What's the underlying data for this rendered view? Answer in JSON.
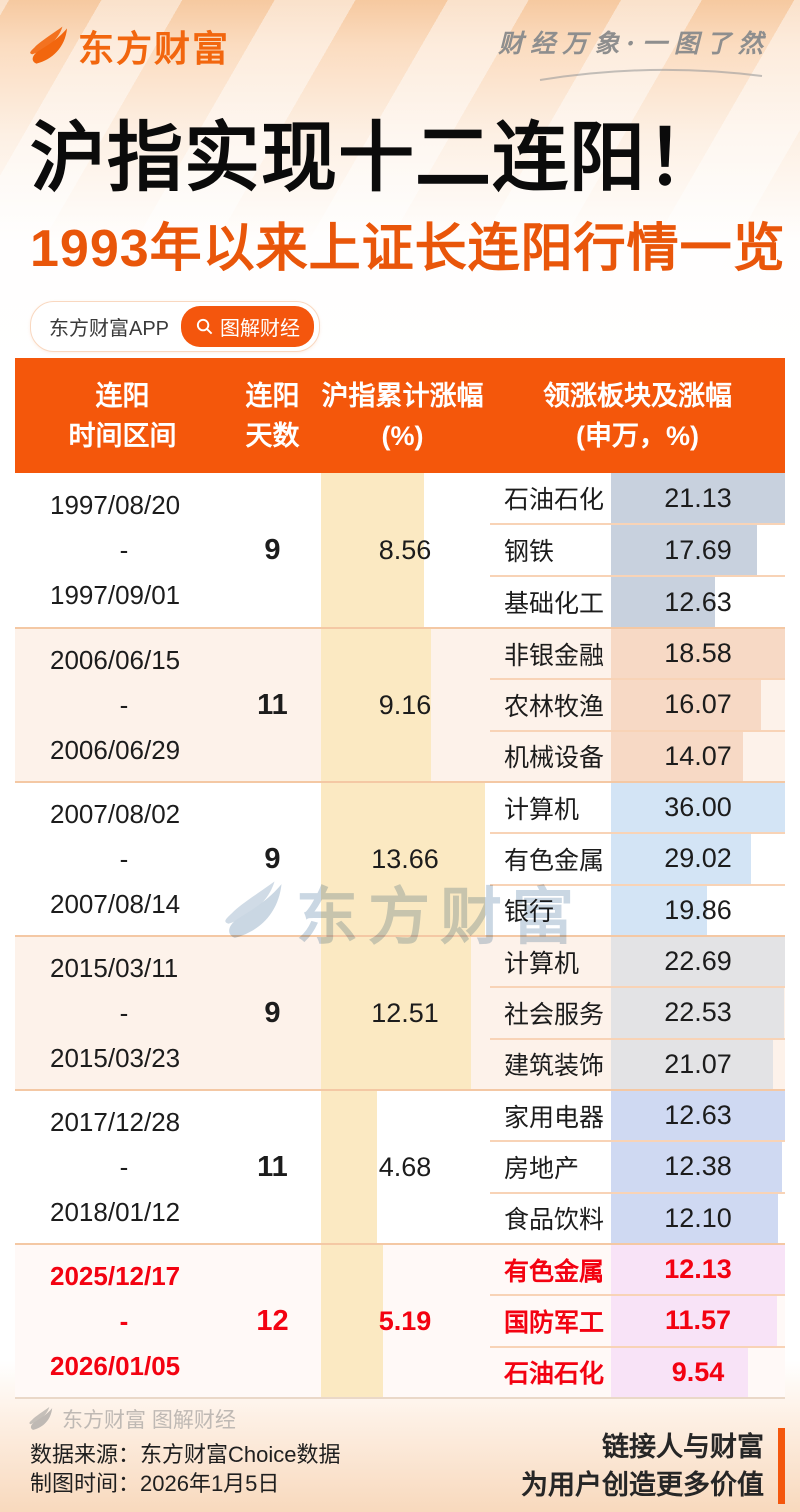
{
  "brand": {
    "logo_text": "东方财富",
    "tagline": "财经万象·一图了然"
  },
  "title": "沪指实现十二连阳！",
  "subtitle": "1993年以来上证长连阳行情一览",
  "badges": {
    "app_label": "东方财富APP",
    "search_label": "图解财经"
  },
  "watermark_text": "东方财富",
  "range_separator": "-",
  "colors": {
    "accent_orange": "#F4570B",
    "logo_orange": "#F2660E",
    "subtitle_orange": "#E9560A",
    "highlight_red": "#F30211",
    "gain_bar_yellow": "#FBE9C2",
    "row_alt_bg": "#FDF2EA",
    "separator": "#F4C8A4"
  },
  "table": {
    "headers": [
      {
        "line1": "连阳",
        "line2": "时间区间"
      },
      {
        "line1": "连阳",
        "line2": "天数"
      },
      {
        "line1": "沪指累计涨幅",
        "line2": "(%)"
      },
      {
        "line1": "领涨板块及涨幅",
        "line2": "(申万，%)"
      }
    ],
    "rows": [
      {
        "start": "1997/08/20",
        "end": "1997/09/01",
        "days": "9",
        "gain": "8.56",
        "highlight": false,
        "bar_color": "#C8D1DE",
        "sectors": [
          {
            "name": "石油石化",
            "value": "21.13"
          },
          {
            "name": "钢铁",
            "value": "17.69"
          },
          {
            "name": "基础化工",
            "value": "12.63"
          }
        ]
      },
      {
        "start": "2006/06/15",
        "end": "2006/06/29",
        "days": "11",
        "gain": "9.16",
        "highlight": false,
        "bar_color": "#F7D9C5",
        "sectors": [
          {
            "name": "非银金融",
            "value": "18.58"
          },
          {
            "name": "农林牧渔",
            "value": "16.07"
          },
          {
            "name": "机械设备",
            "value": "14.07"
          }
        ]
      },
      {
        "start": "2007/08/02",
        "end": "2007/08/14",
        "days": "9",
        "gain": "13.66",
        "highlight": false,
        "bar_color": "#D3E4F5",
        "sectors": [
          {
            "name": "计算机",
            "value": "36.00"
          },
          {
            "name": "有色金属",
            "value": "29.02"
          },
          {
            "name": "银行",
            "value": "19.86"
          }
        ]
      },
      {
        "start": "2015/03/11",
        "end": "2015/03/23",
        "days": "9",
        "gain": "12.51",
        "highlight": false,
        "bar_color": "#E3E3E5",
        "sectors": [
          {
            "name": "计算机",
            "value": "22.69"
          },
          {
            "name": "社会服务",
            "value": "22.53"
          },
          {
            "name": "建筑装饰",
            "value": "21.07"
          }
        ]
      },
      {
        "start": "2017/12/28",
        "end": "2018/01/12",
        "days": "11",
        "gain": "4.68",
        "highlight": false,
        "bar_color": "#CFD9F2",
        "sectors": [
          {
            "name": "家用电器",
            "value": "12.63"
          },
          {
            "name": "房地产",
            "value": "12.38"
          },
          {
            "name": "食品饮料",
            "value": "12.10"
          }
        ]
      },
      {
        "start": "2025/12/17",
        "end": "2026/01/05",
        "days": "12",
        "gain": "5.19",
        "highlight": true,
        "bar_color": "#F8E3F7",
        "sectors": [
          {
            "name": "有色金属",
            "value": "12.13"
          },
          {
            "name": "国防军工",
            "value": "11.57"
          },
          {
            "name": "石油石化",
            "value": "9.54"
          }
        ]
      }
    ]
  },
  "footer": {
    "brand_line": "东方财富 图解财经",
    "source": "数据来源：东方财富Choice数据",
    "made_date": "制图时间：2026年1月5日",
    "slogan_line1": "链接人与财富",
    "slogan_line2": "为用户创造更多价值"
  },
  "chart_data": {
    "type": "table",
    "title": "沪指实现十二连阳！1993年以来上证长连阳行情一览",
    "columns": [
      "连阳时间区间",
      "连阳天数",
      "沪指累计涨幅(%)",
      "领涨板块及涨幅(申万，%)"
    ],
    "rows": [
      [
        "1997/08/20 - 1997/09/01",
        9,
        8.56,
        [
          [
            "石油石化",
            21.13
          ],
          [
            "钢铁",
            17.69
          ],
          [
            "基础化工",
            12.63
          ]
        ]
      ],
      [
        "2006/06/15 - 2006/06/29",
        11,
        9.16,
        [
          [
            "非银金融",
            18.58
          ],
          [
            "农林牧渔",
            16.07
          ],
          [
            "机械设备",
            14.07
          ]
        ]
      ],
      [
        "2007/08/02 - 2007/08/14",
        9,
        13.66,
        [
          [
            "计算机",
            36.0
          ],
          [
            "有色金属",
            29.02
          ],
          [
            "银行",
            19.86
          ]
        ]
      ],
      [
        "2015/03/11 - 2015/03/23",
        9,
        12.51,
        [
          [
            "计算机",
            22.69
          ],
          [
            "社会服务",
            22.53
          ],
          [
            "建筑装饰",
            21.07
          ]
        ]
      ],
      [
        "2017/12/28 - 2018/01/12",
        11,
        4.68,
        [
          [
            "家用电器",
            12.63
          ],
          [
            "房地产",
            12.38
          ],
          [
            "食品饮料",
            12.1
          ]
        ]
      ],
      [
        "2025/12/17 - 2026/01/05",
        12,
        5.19,
        [
          [
            "有色金属",
            12.13
          ],
          [
            "国防军工",
            11.57
          ],
          [
            "石油石化",
            9.54
          ]
        ]
      ]
    ],
    "notes": "最后一行(2025/12/17-2026/01/05, 十二连阳)为红色高亮行"
  }
}
